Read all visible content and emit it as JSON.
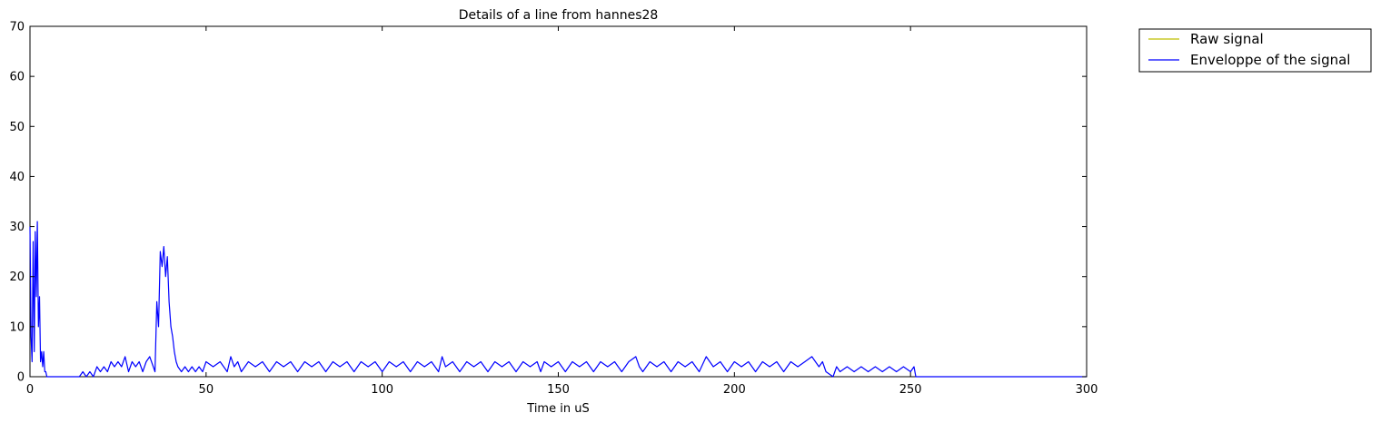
{
  "chart_data": {
    "type": "line",
    "title": "Details of a line from hannes28",
    "xlabel": "Time in uS",
    "ylabel": "",
    "xlim": [
      0,
      300
    ],
    "ylim": [
      0,
      70
    ],
    "xticks": [
      0,
      50,
      100,
      150,
      200,
      250,
      300
    ],
    "yticks": [
      0,
      10,
      20,
      30,
      40,
      50,
      60,
      70
    ],
    "grid": false,
    "legend_placement": "outside-top-right",
    "series": [
      {
        "name": "Raw signal",
        "color": "#bfbf00",
        "x": [],
        "y": []
      },
      {
        "name": "Enveloppe of the signal",
        "color": "#0000ff",
        "x": [
          0,
          0.3,
          0.6,
          0.9,
          1.2,
          1.5,
          1.8,
          2.1,
          2.4,
          2.7,
          3.0,
          3.3,
          3.6,
          3.9,
          4.2,
          4.5,
          4.8,
          5.1,
          5.5,
          6.0,
          7,
          10,
          14,
          15,
          16,
          17,
          18,
          19,
          20,
          21,
          22,
          23,
          24,
          25,
          26,
          27,
          28,
          29,
          30,
          31,
          32,
          33,
          34,
          35,
          35.5,
          36,
          36.5,
          37,
          37.5,
          38,
          38.5,
          39,
          39.5,
          40,
          40.5,
          41,
          41.5,
          42,
          43,
          44,
          45,
          46,
          47,
          48,
          49,
          50,
          52,
          54,
          56,
          57,
          58,
          59,
          60,
          62,
          64,
          66,
          68,
          70,
          72,
          74,
          76,
          78,
          80,
          82,
          84,
          86,
          88,
          90,
          92,
          94,
          96,
          98,
          100,
          102,
          104,
          106,
          108,
          110,
          112,
          114,
          116,
          117,
          118,
          120,
          122,
          124,
          126,
          128,
          130,
          132,
          134,
          136,
          138,
          140,
          142,
          144,
          145,
          146,
          148,
          150,
          152,
          154,
          156,
          158,
          160,
          162,
          164,
          166,
          168,
          170,
          172,
          173,
          174,
          176,
          178,
          180,
          182,
          184,
          186,
          188,
          190,
          192,
          194,
          196,
          198,
          200,
          202,
          204,
          206,
          208,
          210,
          212,
          214,
          216,
          218,
          220,
          222,
          224,
          225,
          226,
          228,
          229,
          230,
          232,
          234,
          236,
          238,
          240,
          242,
          244,
          246,
          248,
          250,
          251,
          251.5,
          300
        ],
        "y": [
          30,
          8,
          3,
          27,
          5,
          29,
          16,
          31,
          10,
          16,
          3,
          5,
          2,
          5,
          1,
          1,
          0,
          0,
          0,
          0,
          0,
          0,
          0,
          1,
          0,
          1,
          0,
          2,
          1,
          2,
          1,
          3,
          2,
          3,
          2,
          4,
          1,
          3,
          2,
          3,
          1,
          3,
          4,
          2,
          1,
          15,
          10,
          25,
          22,
          26,
          20,
          24,
          15,
          10,
          8,
          5,
          3,
          2,
          1,
          2,
          1,
          2,
          1,
          2,
          1,
          3,
          2,
          3,
          1,
          4,
          2,
          3,
          1,
          3,
          2,
          3,
          1,
          3,
          2,
          3,
          1,
          3,
          2,
          3,
          1,
          3,
          2,
          3,
          1,
          3,
          2,
          3,
          1,
          3,
          2,
          3,
          1,
          3,
          2,
          3,
          1,
          4,
          2,
          3,
          1,
          3,
          2,
          3,
          1,
          3,
          2,
          3,
          1,
          3,
          2,
          3,
          1,
          3,
          2,
          3,
          1,
          3,
          2,
          3,
          1,
          3,
          2,
          3,
          1,
          3,
          4,
          2,
          1,
          3,
          2,
          3,
          1,
          3,
          2,
          3,
          1,
          4,
          2,
          3,
          1,
          3,
          2,
          3,
          1,
          3,
          2,
          3,
          1,
          3,
          2,
          3,
          4,
          2,
          3,
          1,
          0,
          2,
          1,
          2,
          1,
          2,
          1,
          2,
          1,
          2,
          1,
          2,
          1,
          2,
          0,
          0
        ]
      }
    ]
  }
}
